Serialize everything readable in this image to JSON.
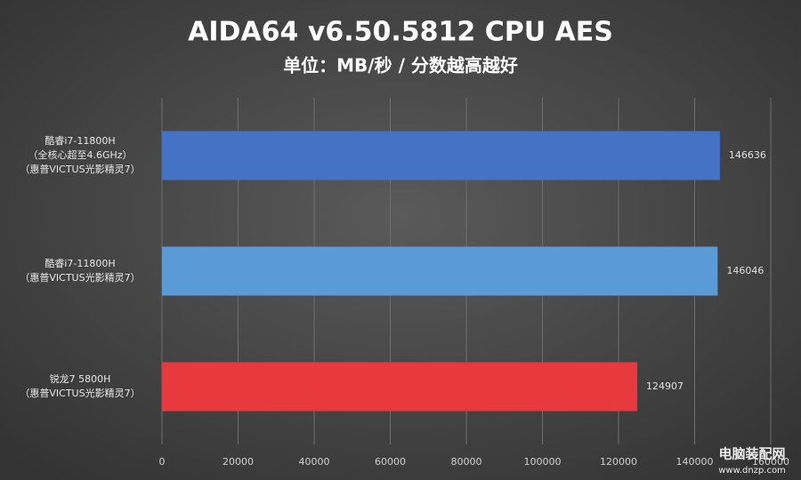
{
  "chart_data": {
    "type": "bar",
    "orientation": "horizontal",
    "title": "AIDA64 v6.50.5812 CPU AES",
    "subtitle": "单位：MB/秒 / 分数越高越好",
    "categories": [
      [
        "酷睿i7-11800H",
        "（全核心超至4.6GHz）",
        "（惠普VICTUS光影精灵7）"
      ],
      [
        "酷睿i7-11800H",
        "（惠普VICTUS光影精灵7）"
      ],
      [
        "锐龙7 5800H",
        "（惠普VICTUS光影精灵7）"
      ]
    ],
    "values": [
      146636,
      146046,
      124907
    ],
    "colors": [
      "#4472c4",
      "#5b9bd5",
      "#e8393e"
    ],
    "xlim": [
      0,
      160000
    ],
    "xticks": [
      0,
      20000,
      40000,
      60000,
      80000,
      100000,
      120000,
      140000,
      160000
    ],
    "grid": true,
    "watermark": [
      "电脑装配网",
      "www.dnzp.com"
    ]
  }
}
